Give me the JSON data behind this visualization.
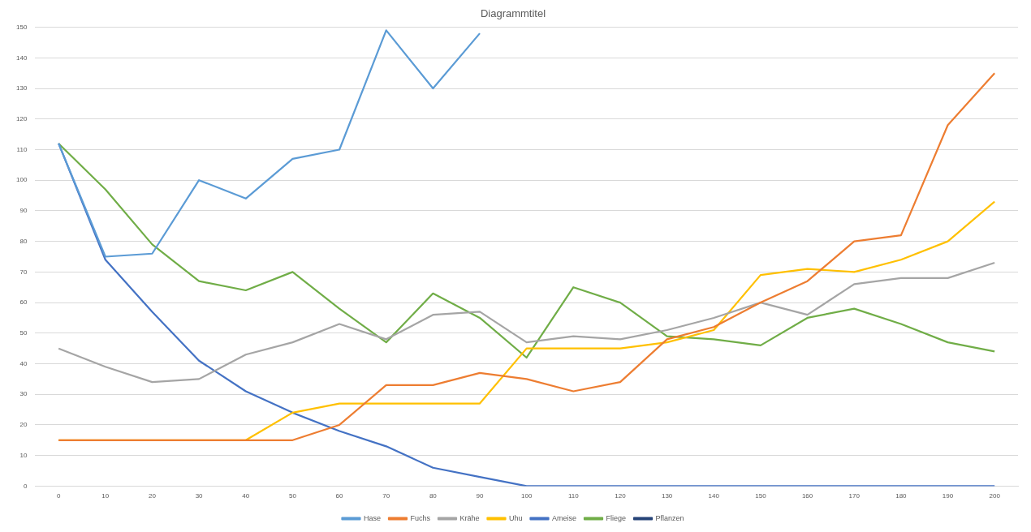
{
  "chart_data": {
    "type": "line",
    "title": "Diagrammtitel",
    "categories": [
      "0",
      "10",
      "20",
      "30",
      "40",
      "50",
      "60",
      "70",
      "80",
      "90",
      "100",
      "110",
      "120",
      "130",
      "140",
      "150",
      "160",
      "170",
      "180",
      "190",
      "200"
    ],
    "series": [
      {
        "name": "Hase",
        "color": "#5b9bd5",
        "values": [
          112,
          75,
          76,
          100,
          94,
          107,
          110,
          149,
          130,
          148,
          null,
          null,
          null,
          null,
          null,
          null,
          null,
          null,
          null,
          null,
          null
        ]
      },
      {
        "name": "Fuchs",
        "color": "#ed7d31",
        "values": [
          15,
          15,
          15,
          15,
          15,
          15,
          20,
          33,
          33,
          37,
          35,
          31,
          34,
          48,
          52,
          60,
          67,
          80,
          82,
          118,
          135
        ]
      },
      {
        "name": "Krähe",
        "color": "#a5a5a5",
        "values": [
          45,
          39,
          34,
          35,
          43,
          47,
          53,
          48,
          56,
          57,
          47,
          49,
          48,
          51,
          55,
          60,
          56,
          66,
          68,
          68,
          73
        ]
      },
      {
        "name": "Uhu",
        "color": "#ffc000",
        "values": [
          15,
          15,
          15,
          15,
          15,
          24,
          27,
          27,
          27,
          27,
          45,
          45,
          45,
          47,
          51,
          69,
          71,
          70,
          74,
          80,
          93
        ]
      },
      {
        "name": "Ameise",
        "color": "#4472c4",
        "values": [
          112,
          74,
          57,
          41,
          31,
          24,
          18,
          13,
          6,
          3,
          0,
          0,
          0,
          0,
          0,
          0,
          0,
          0,
          0,
          0,
          0
        ]
      },
      {
        "name": "Fliege",
        "color": "#70ad47",
        "values": [
          112,
          97,
          79,
          67,
          64,
          70,
          58,
          47,
          63,
          55,
          42,
          65,
          60,
          49,
          48,
          46,
          55,
          58,
          53,
          47,
          44
        ]
      },
      {
        "name": "Pflanzen",
        "color": "#264478",
        "values": [
          null,
          null,
          null,
          null,
          null,
          null,
          null,
          null,
          null,
          null,
          null,
          null,
          null,
          null,
          null,
          null,
          null,
          null,
          null,
          null,
          null
        ]
      }
    ],
    "ylim": [
      0,
      150
    ],
    "yticks": [
      0,
      10,
      20,
      30,
      40,
      50,
      60,
      70,
      80,
      90,
      100,
      110,
      120,
      130,
      140,
      150
    ],
    "grid": "y",
    "legend": "bottom",
    "marker": "none",
    "line_style": "solid"
  }
}
